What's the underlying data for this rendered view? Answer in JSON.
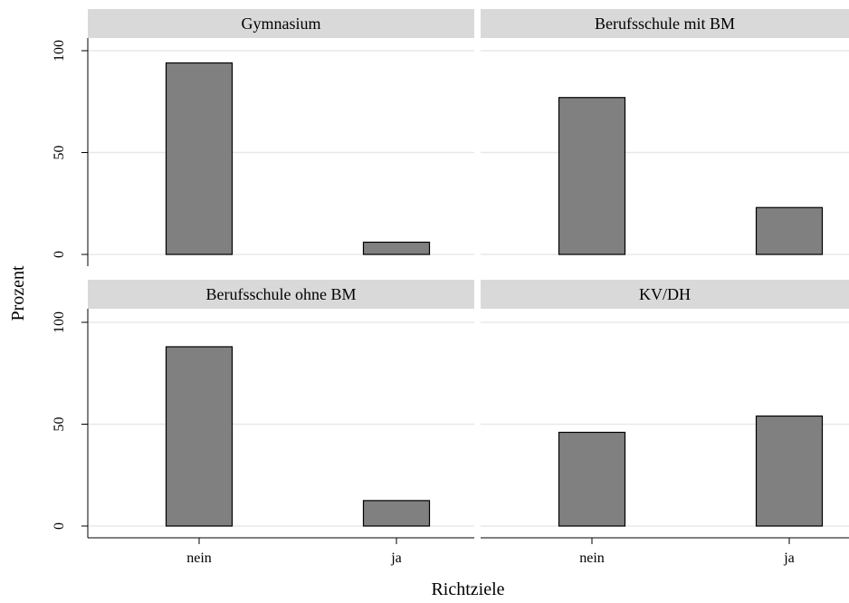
{
  "chart_data": {
    "type": "bar",
    "xlabel": "Richtziele",
    "ylabel": "Prozent",
    "categories": [
      "nein",
      "ja"
    ],
    "ylim": [
      0,
      100
    ],
    "yticks": [
      0,
      50,
      100
    ],
    "grid": true,
    "colors": {
      "bar": "#808080",
      "strip": "#d9d9d9"
    },
    "panels": [
      {
        "title": "Gymnasium",
        "values": [
          94,
          6
        ]
      },
      {
        "title": "Berufsschule mit BM",
        "values": [
          77,
          23
        ]
      },
      {
        "title": "Berufsschule ohne BM",
        "values": [
          88,
          12.5
        ]
      },
      {
        "title": "KV/DH",
        "values": [
          46,
          54
        ]
      }
    ]
  }
}
